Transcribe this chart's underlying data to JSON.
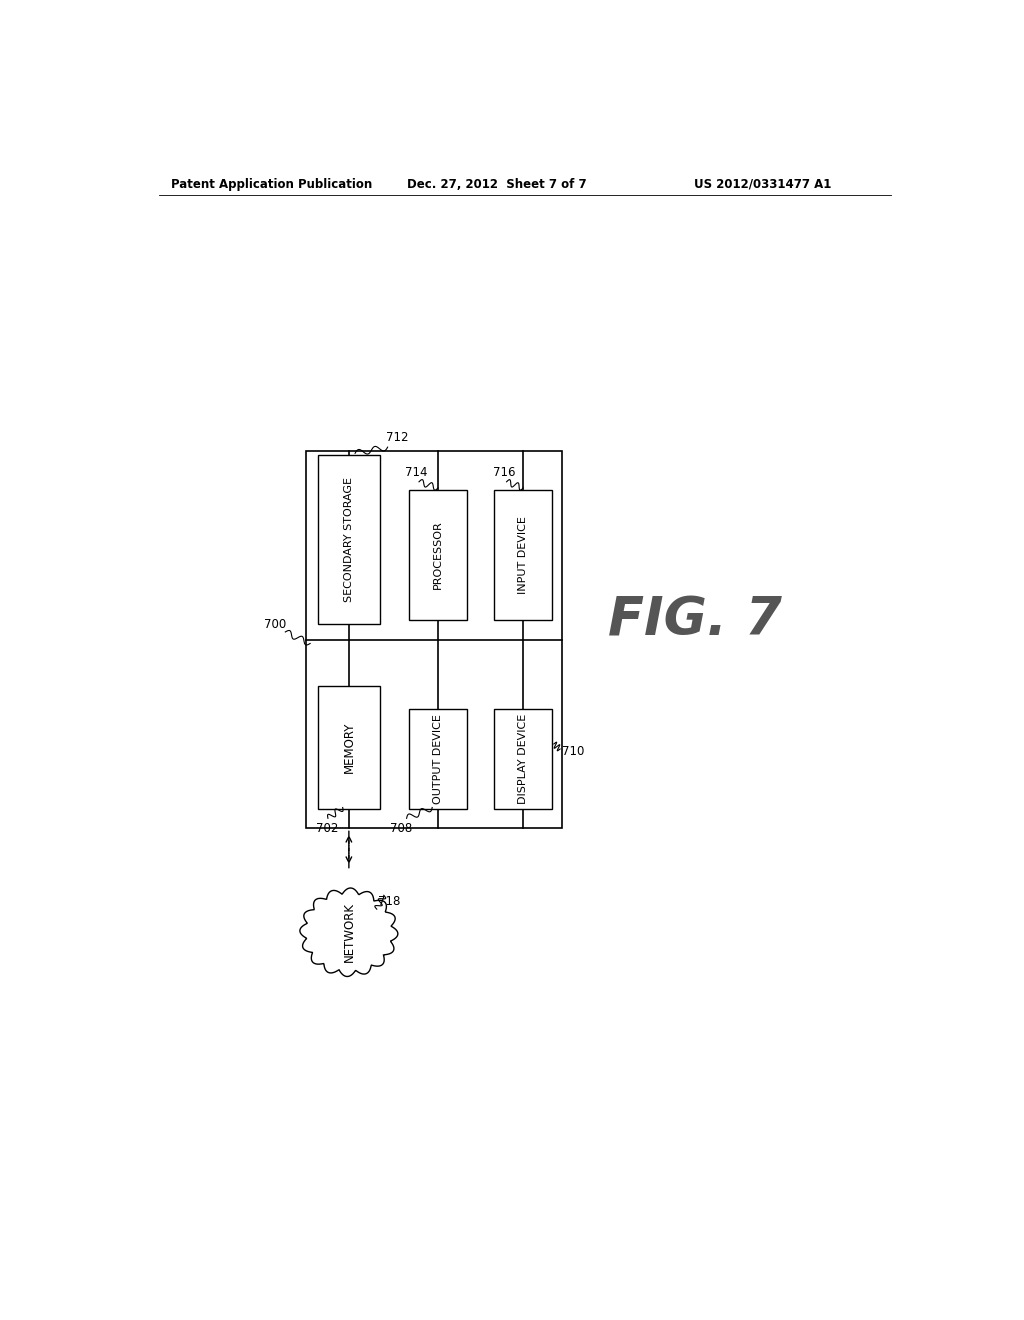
{
  "bg_color": "#ffffff",
  "header_left": "Patent Application Publication",
  "header_mid": "Dec. 27, 2012  Sheet 7 of 7",
  "header_right": "US 2012/0331477 A1",
  "fig_label": "FIG. 7",
  "label_700": "700",
  "label_702": "702",
  "label_708": "708",
  "label_710": "710",
  "label_712": "712",
  "label_714": "714",
  "label_716": "716",
  "label_718": "718",
  "box_memory": "MEMORY",
  "box_secondary": "SECONDARY STORAGE",
  "box_processor": "PROCESSOR",
  "box_input": "INPUT DEVICE",
  "box_output": "OUTPUT DEVICE",
  "box_display": "DISPLAY DEVICE",
  "box_network": "NETWORK"
}
